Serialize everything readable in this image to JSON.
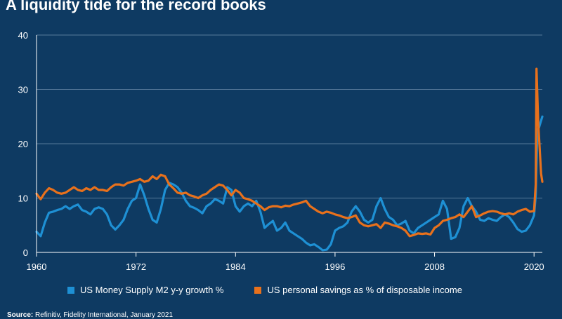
{
  "title": "A liquidity tide for the record books",
  "source": {
    "label": "Source:",
    "text": "Refinitiv, Fidelity International, January 2021"
  },
  "chart_data": {
    "type": "line",
    "title": "A liquidity tide for the record books",
    "xlabel": "",
    "ylabel": "",
    "xlim": [
      1960,
      2021
    ],
    "ylim": [
      0,
      40
    ],
    "grid": true,
    "legend_position": "bottom",
    "x_ticks": [
      1960,
      1972,
      1984,
      1996,
      2008,
      2020
    ],
    "y_ticks": [
      0,
      10,
      20,
      30,
      40
    ],
    "series": [
      {
        "name": "US Money Supply M2 y-y growth %",
        "color": "#1e90d4",
        "points": [
          [
            1960.0,
            3.8
          ],
          [
            1960.5,
            3.0
          ],
          [
            1961.0,
            5.5
          ],
          [
            1961.5,
            7.3
          ],
          [
            1962.0,
            7.5
          ],
          [
            1962.5,
            7.8
          ],
          [
            1963.0,
            8.0
          ],
          [
            1963.5,
            8.5
          ],
          [
            1964.0,
            8.0
          ],
          [
            1964.5,
            8.5
          ],
          [
            1965.0,
            8.8
          ],
          [
            1965.5,
            7.8
          ],
          [
            1966.0,
            7.5
          ],
          [
            1966.5,
            7.0
          ],
          [
            1967.0,
            8.0
          ],
          [
            1967.5,
            8.3
          ],
          [
            1968.0,
            8.0
          ],
          [
            1968.5,
            7.0
          ],
          [
            1969.0,
            5.0
          ],
          [
            1969.5,
            4.2
          ],
          [
            1970.0,
            5.0
          ],
          [
            1970.5,
            6.0
          ],
          [
            1971.0,
            8.0
          ],
          [
            1971.5,
            9.5
          ],
          [
            1972.0,
            10.0
          ],
          [
            1972.5,
            12.5
          ],
          [
            1973.0,
            10.5
          ],
          [
            1973.5,
            8.0
          ],
          [
            1974.0,
            6.0
          ],
          [
            1974.5,
            5.5
          ],
          [
            1975.0,
            8.0
          ],
          [
            1975.5,
            11.5
          ],
          [
            1976.0,
            12.8
          ],
          [
            1976.5,
            12.5
          ],
          [
            1977.0,
            12.0
          ],
          [
            1977.5,
            11.0
          ],
          [
            1978.0,
            9.5
          ],
          [
            1978.5,
            8.5
          ],
          [
            1979.0,
            8.2
          ],
          [
            1979.5,
            7.8
          ],
          [
            1980.0,
            7.2
          ],
          [
            1980.5,
            8.5
          ],
          [
            1981.0,
            9.0
          ],
          [
            1981.5,
            9.8
          ],
          [
            1982.0,
            9.5
          ],
          [
            1982.5,
            9.0
          ],
          [
            1983.0,
            12.0
          ],
          [
            1983.5,
            11.5
          ],
          [
            1984.0,
            8.5
          ],
          [
            1984.5,
            7.5
          ],
          [
            1985.0,
            8.5
          ],
          [
            1985.5,
            9.0
          ],
          [
            1986.0,
            8.5
          ],
          [
            1986.5,
            9.5
          ],
          [
            1987.0,
            7.5
          ],
          [
            1987.5,
            4.5
          ],
          [
            1988.0,
            5.2
          ],
          [
            1988.5,
            5.8
          ],
          [
            1989.0,
            4.0
          ],
          [
            1989.5,
            4.5
          ],
          [
            1990.0,
            5.5
          ],
          [
            1990.5,
            4.0
          ],
          [
            1991.0,
            3.5
          ],
          [
            1991.5,
            3.0
          ],
          [
            1992.0,
            2.5
          ],
          [
            1992.5,
            1.8
          ],
          [
            1993.0,
            1.3
          ],
          [
            1993.5,
            1.5
          ],
          [
            1994.0,
            1.0
          ],
          [
            1994.5,
            0.4
          ],
          [
            1995.0,
            0.5
          ],
          [
            1995.5,
            1.5
          ],
          [
            1996.0,
            4.0
          ],
          [
            1996.5,
            4.5
          ],
          [
            1997.0,
            4.8
          ],
          [
            1997.5,
            5.5
          ],
          [
            1998.0,
            7.5
          ],
          [
            1998.5,
            8.5
          ],
          [
            1999.0,
            7.5
          ],
          [
            1999.5,
            6.0
          ],
          [
            2000.0,
            5.5
          ],
          [
            2000.5,
            6.0
          ],
          [
            2001.0,
            8.5
          ],
          [
            2001.5,
            10.0
          ],
          [
            2002.0,
            8.0
          ],
          [
            2002.5,
            6.5
          ],
          [
            2003.0,
            6.0
          ],
          [
            2003.5,
            5.0
          ],
          [
            2004.0,
            5.3
          ],
          [
            2004.5,
            5.8
          ],
          [
            2005.0,
            4.0
          ],
          [
            2005.5,
            3.5
          ],
          [
            2006.0,
            4.5
          ],
          [
            2006.5,
            5.0
          ],
          [
            2007.0,
            5.5
          ],
          [
            2007.5,
            6.0
          ],
          [
            2008.0,
            6.5
          ],
          [
            2008.5,
            7.0
          ],
          [
            2009.0,
            9.5
          ],
          [
            2009.5,
            8.0
          ],
          [
            2010.0,
            2.5
          ],
          [
            2010.5,
            2.8
          ],
          [
            2011.0,
            4.5
          ],
          [
            2011.5,
            8.5
          ],
          [
            2012.0,
            10.0
          ],
          [
            2012.5,
            8.5
          ],
          [
            2013.0,
            7.5
          ],
          [
            2013.5,
            6.0
          ],
          [
            2014.0,
            5.8
          ],
          [
            2014.5,
            6.3
          ],
          [
            2015.0,
            6.0
          ],
          [
            2015.5,
            5.8
          ],
          [
            2016.0,
            6.5
          ],
          [
            2016.5,
            7.0
          ],
          [
            2017.0,
            6.5
          ],
          [
            2017.5,
            5.5
          ],
          [
            2018.0,
            4.3
          ],
          [
            2018.5,
            3.8
          ],
          [
            2019.0,
            4.0
          ],
          [
            2019.5,
            5.0
          ],
          [
            2020.0,
            6.8
          ],
          [
            2020.2,
            10.5
          ],
          [
            2020.4,
            22.5
          ],
          [
            2020.6,
            23.0
          ],
          [
            2020.8,
            24.0
          ],
          [
            2021.0,
            25.0
          ]
        ]
      },
      {
        "name": "US personal savings as % of disposable income",
        "color": "#e8711c",
        "points": [
          [
            1960.0,
            10.8
          ],
          [
            1960.5,
            9.8
          ],
          [
            1961.0,
            11.0
          ],
          [
            1961.5,
            11.8
          ],
          [
            1962.0,
            11.5
          ],
          [
            1962.5,
            11.0
          ],
          [
            1963.0,
            10.8
          ],
          [
            1963.5,
            11.0
          ],
          [
            1964.0,
            11.5
          ],
          [
            1964.5,
            12.0
          ],
          [
            1965.0,
            11.5
          ],
          [
            1965.5,
            11.3
          ],
          [
            1966.0,
            11.8
          ],
          [
            1966.5,
            11.5
          ],
          [
            1967.0,
            12.0
          ],
          [
            1967.5,
            11.5
          ],
          [
            1968.0,
            11.5
          ],
          [
            1968.5,
            11.3
          ],
          [
            1969.0,
            12.0
          ],
          [
            1969.5,
            12.5
          ],
          [
            1970.0,
            12.5
          ],
          [
            1970.5,
            12.3
          ],
          [
            1971.0,
            12.8
          ],
          [
            1971.5,
            13.0
          ],
          [
            1972.0,
            13.2
          ],
          [
            1972.5,
            13.5
          ],
          [
            1973.0,
            13.0
          ],
          [
            1973.5,
            13.2
          ],
          [
            1974.0,
            14.0
          ],
          [
            1974.5,
            13.5
          ],
          [
            1975.0,
            14.3
          ],
          [
            1975.5,
            14.0
          ],
          [
            1976.0,
            12.5
          ],
          [
            1976.5,
            11.8
          ],
          [
            1977.0,
            11.0
          ],
          [
            1977.5,
            10.8
          ],
          [
            1978.0,
            11.0
          ],
          [
            1978.5,
            10.5
          ],
          [
            1979.0,
            10.3
          ],
          [
            1979.5,
            10.0
          ],
          [
            1980.0,
            10.5
          ],
          [
            1980.5,
            10.8
          ],
          [
            1981.0,
            11.5
          ],
          [
            1981.5,
            12.0
          ],
          [
            1982.0,
            12.5
          ],
          [
            1982.5,
            12.3
          ],
          [
            1983.0,
            11.5
          ],
          [
            1983.5,
            10.5
          ],
          [
            1984.0,
            11.5
          ],
          [
            1984.5,
            11.0
          ],
          [
            1985.0,
            10.0
          ],
          [
            1985.5,
            9.8
          ],
          [
            1986.0,
            9.5
          ],
          [
            1986.5,
            9.0
          ],
          [
            1987.0,
            8.5
          ],
          [
            1987.5,
            7.8
          ],
          [
            1988.0,
            8.3
          ],
          [
            1988.5,
            8.5
          ],
          [
            1989.0,
            8.5
          ],
          [
            1989.5,
            8.3
          ],
          [
            1990.0,
            8.6
          ],
          [
            1990.5,
            8.5
          ],
          [
            1991.0,
            8.8
          ],
          [
            1991.5,
            9.0
          ],
          [
            1992.0,
            9.2
          ],
          [
            1992.5,
            9.5
          ],
          [
            1993.0,
            8.5
          ],
          [
            1993.5,
            8.0
          ],
          [
            1994.0,
            7.5
          ],
          [
            1994.5,
            7.2
          ],
          [
            1995.0,
            7.5
          ],
          [
            1995.5,
            7.3
          ],
          [
            1996.0,
            7.0
          ],
          [
            1996.5,
            6.8
          ],
          [
            1997.0,
            6.5
          ],
          [
            1997.5,
            6.3
          ],
          [
            1998.0,
            6.5
          ],
          [
            1998.5,
            6.8
          ],
          [
            1999.0,
            5.5
          ],
          [
            1999.5,
            5.0
          ],
          [
            2000.0,
            4.8
          ],
          [
            2000.5,
            5.0
          ],
          [
            2001.0,
            5.2
          ],
          [
            2001.5,
            4.5
          ],
          [
            2002.0,
            5.5
          ],
          [
            2002.5,
            5.3
          ],
          [
            2003.0,
            5.0
          ],
          [
            2003.5,
            4.8
          ],
          [
            2004.0,
            4.5
          ],
          [
            2004.5,
            4.0
          ],
          [
            2005.0,
            3.0
          ],
          [
            2005.5,
            3.2
          ],
          [
            2006.0,
            3.5
          ],
          [
            2006.5,
            3.4
          ],
          [
            2007.0,
            3.5
          ],
          [
            2007.5,
            3.3
          ],
          [
            2008.0,
            4.5
          ],
          [
            2008.5,
            5.0
          ],
          [
            2009.0,
            5.8
          ],
          [
            2009.5,
            6.0
          ],
          [
            2010.0,
            6.3
          ],
          [
            2010.5,
            6.5
          ],
          [
            2011.0,
            7.0
          ],
          [
            2011.5,
            6.5
          ],
          [
            2012.0,
            7.5
          ],
          [
            2012.5,
            8.5
          ],
          [
            2013.0,
            6.5
          ],
          [
            2013.5,
            6.8
          ],
          [
            2014.0,
            7.2
          ],
          [
            2014.5,
            7.5
          ],
          [
            2015.0,
            7.6
          ],
          [
            2015.5,
            7.5
          ],
          [
            2016.0,
            7.2
          ],
          [
            2016.5,
            7.0
          ],
          [
            2017.0,
            7.2
          ],
          [
            2017.5,
            7.0
          ],
          [
            2018.0,
            7.5
          ],
          [
            2018.5,
            7.8
          ],
          [
            2019.0,
            8.0
          ],
          [
            2019.5,
            7.5
          ],
          [
            2020.0,
            7.6
          ],
          [
            2020.2,
            12.5
          ],
          [
            2020.3,
            33.8
          ],
          [
            2020.5,
            24.0
          ],
          [
            2020.7,
            18.5
          ],
          [
            2020.85,
            14.5
          ],
          [
            2021.0,
            13.0
          ]
        ]
      }
    ]
  }
}
